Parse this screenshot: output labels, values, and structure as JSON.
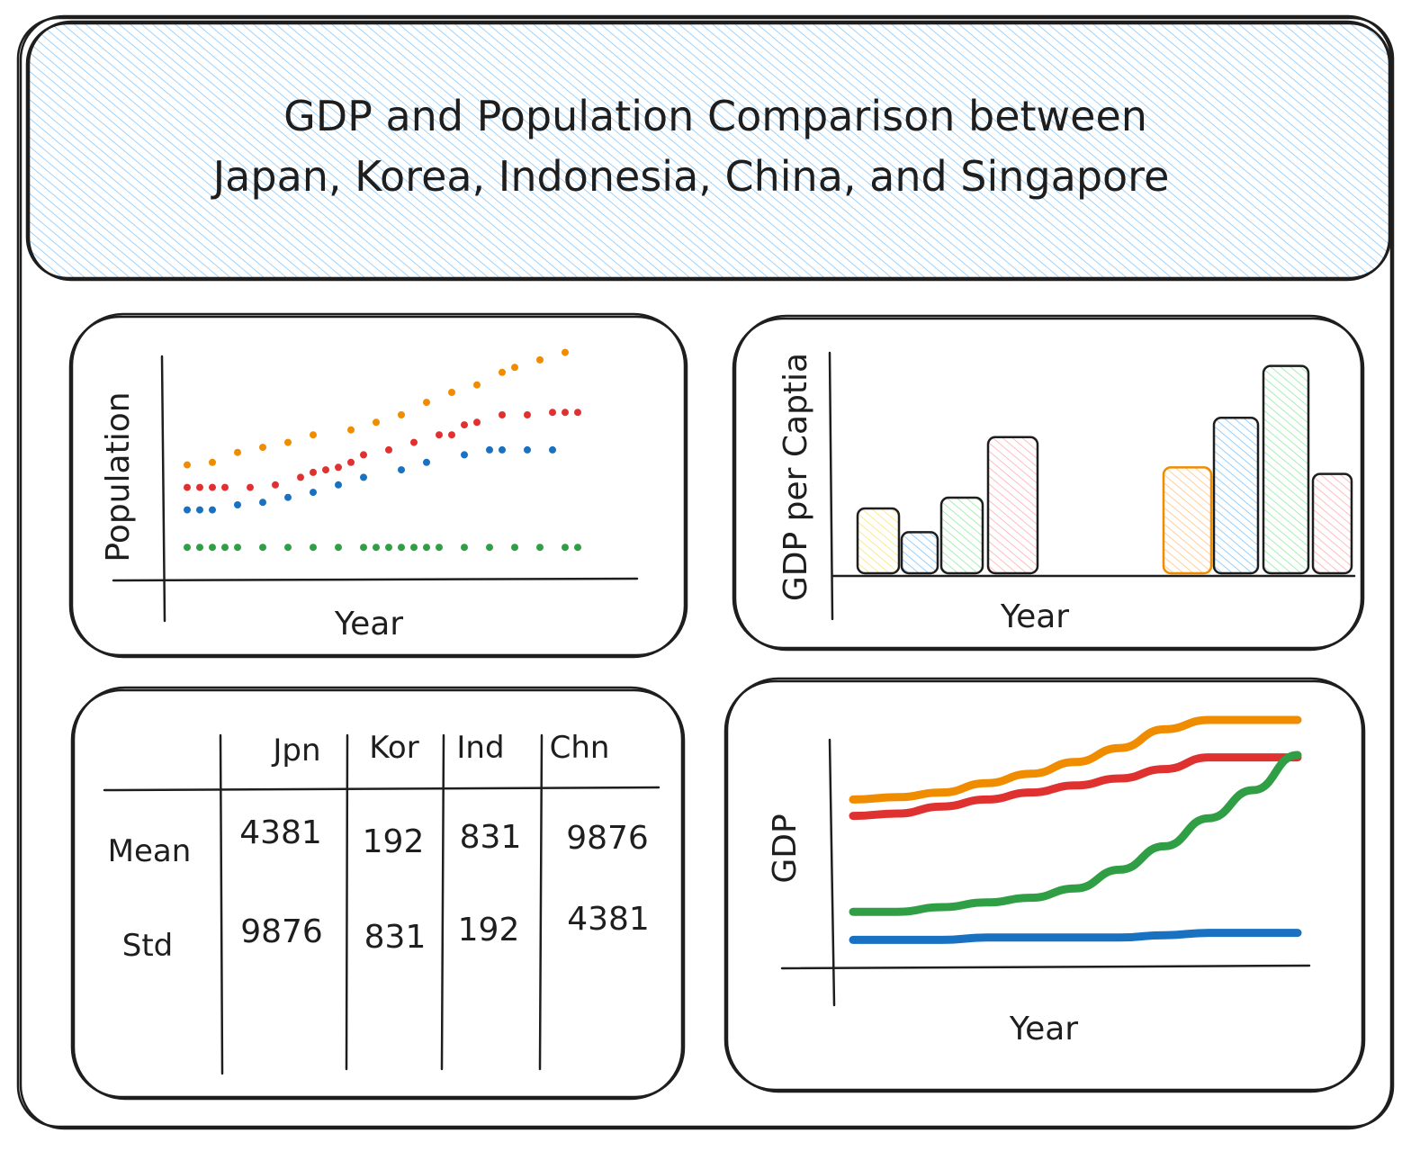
{
  "title": {
    "line1": "GDP and Population Comparison between",
    "line2": "Japan, Korea, Indonesia, China, and Singapore",
    "fill_color": "#a5d8ff"
  },
  "colors": {
    "orange": "#f08c00",
    "red": "#e03131",
    "blue": "#1971c2",
    "green": "#2f9e44",
    "yellow_fill": "#ffec99",
    "blue_fill": "#a5d8ff",
    "green_fill": "#b2f2bb",
    "pink_fill": "#ffc9c9",
    "ink": "#1e1e1e"
  },
  "chart_data": [
    {
      "type": "scatter",
      "xlabel": "Year",
      "ylabel": "Population",
      "series": [
        {
          "color": "orange",
          "x": [
            1,
            3,
            5,
            7,
            9,
            11,
            14,
            16,
            18,
            20,
            22,
            24,
            26,
            27,
            29,
            31
          ],
          "y": [
            4.3,
            4.4,
            4.8,
            5.0,
            5.2,
            5.5,
            5.7,
            6.0,
            6.3,
            6.8,
            7.2,
            7.5,
            8.0,
            8.2,
            8.5,
            8.8
          ]
        },
        {
          "color": "red",
          "x": [
            1,
            2,
            3,
            4,
            6,
            8,
            10,
            11,
            12,
            13,
            14,
            15,
            17,
            19,
            21,
            22,
            23,
            24,
            26,
            28,
            30,
            31,
            32
          ],
          "y": [
            3.4,
            3.4,
            3.4,
            3.4,
            3.4,
            3.5,
            3.8,
            4.0,
            4.1,
            4.2,
            4.4,
            4.7,
            4.9,
            5.2,
            5.5,
            5.5,
            5.9,
            6.0,
            6.3,
            6.3,
            6.4,
            6.4,
            6.4
          ]
        },
        {
          "color": "blue",
          "x": [
            1,
            2,
            3,
            5,
            7,
            9,
            11,
            13,
            15,
            18,
            20,
            23,
            25,
            26,
            28,
            30
          ],
          "y": [
            2.5,
            2.5,
            2.5,
            2.7,
            2.8,
            3.0,
            3.2,
            3.5,
            3.8,
            4.1,
            4.4,
            4.7,
            4.9,
            4.9,
            4.9,
            4.9
          ]
        },
        {
          "color": "green",
          "x": [
            1,
            2,
            3,
            4,
            5,
            7,
            9,
            11,
            13,
            15,
            16,
            17,
            18,
            19,
            20,
            21,
            23,
            25,
            27,
            29,
            31,
            32
          ],
          "y": [
            1.0,
            1.0,
            1.0,
            1.0,
            1.0,
            1.0,
            1.0,
            1.0,
            1.0,
            1.0,
            1.0,
            1.0,
            1.0,
            1.0,
            1.0,
            1.0,
            1.0,
            1.0,
            1.0,
            1.0,
            1.0,
            1.0
          ]
        }
      ]
    },
    {
      "type": "bar",
      "xlabel": "Year",
      "ylabel": "GDP per Captia",
      "groups": [
        {
          "values": [
            3.0,
            1.9,
            3.5,
            6.3
          ],
          "colors": [
            "yellow_fill",
            "blue_fill",
            "green_fill",
            "pink_fill"
          ]
        },
        {
          "values": [
            4.9,
            7.2,
            9.6,
            4.6
          ],
          "colors": [
            "orange",
            "blue_fill",
            "green_fill",
            "pink_fill"
          ]
        }
      ]
    },
    {
      "type": "table",
      "columns": [
        "",
        "Jpn",
        "Kor",
        "Ind",
        "Chn"
      ],
      "rows": [
        {
          "label": "Mean",
          "values": [
            "4381",
            "192",
            "831",
            "9876"
          ]
        },
        {
          "label": "Std",
          "values": [
            "9876",
            "831",
            "192",
            "4381"
          ]
        }
      ]
    },
    {
      "type": "line",
      "xlabel": "Year",
      "ylabel": "GDP",
      "x": [
        0,
        1,
        2,
        3,
        4,
        5,
        6,
        7,
        8,
        9,
        10
      ],
      "series": [
        {
          "color": "orange",
          "values": [
            6.6,
            6.7,
            6.9,
            7.3,
            7.7,
            8.2,
            8.8,
            9.6,
            10.0,
            10.0,
            10.0
          ]
        },
        {
          "color": "red",
          "values": [
            5.9,
            6.0,
            6.3,
            6.6,
            6.9,
            7.2,
            7.5,
            7.9,
            8.4,
            8.4,
            8.4
          ]
        },
        {
          "color": "green",
          "values": [
            1.8,
            1.8,
            2.0,
            2.2,
            2.4,
            2.8,
            3.6,
            4.6,
            5.8,
            7.0,
            8.5
          ]
        },
        {
          "color": "blue",
          "values": [
            0.6,
            0.6,
            0.6,
            0.7,
            0.7,
            0.7,
            0.7,
            0.8,
            0.9,
            0.9,
            0.9
          ]
        }
      ]
    }
  ]
}
